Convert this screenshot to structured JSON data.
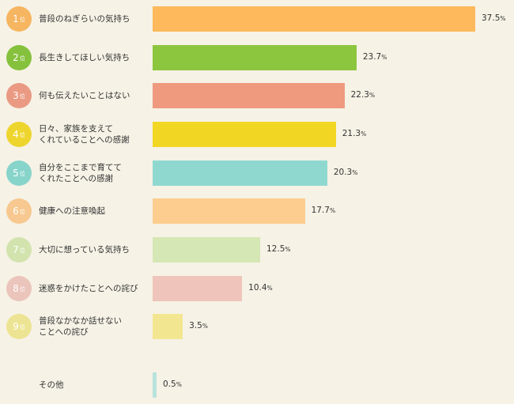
{
  "chart_data": {
    "type": "bar",
    "orientation": "horizontal",
    "xlim": [
      0,
      40
    ],
    "rank_suffix": "位",
    "value_unit": "%",
    "categories": [
      "普段のねぎらいの気持ち",
      "長生きしてほしい気持ち",
      "何も伝えたいことはない",
      "日々、家族を支えて\nくれていることへの感謝",
      "自分をここまで育てて\nくれたことへの感謝",
      "健康への注意喚起",
      "大切に想っている気持ち",
      "迷惑をかけたことへの詫び",
      "普段なかなか話せない\nことへの詫び",
      "その他"
    ],
    "ranks": [
      "1",
      "2",
      "3",
      "4",
      "5",
      "6",
      "7",
      "8",
      "9",
      ""
    ],
    "values": [
      37.5,
      23.7,
      22.3,
      21.3,
      20.3,
      17.7,
      12.5,
      10.4,
      3.5,
      0.5
    ],
    "value_labels": [
      "37.5",
      "23.7",
      "22.3",
      "21.3",
      "20.3",
      "17.7",
      "12.5",
      "10.4",
      "3.5",
      "0.5"
    ],
    "bar_colors": [
      "#fdb95b",
      "#8cc63e",
      "#ef9a7f",
      "#f2d624",
      "#8fd8cf",
      "#fccd8f",
      "#d5e7b4",
      "#efc4ba",
      "#f2e691",
      "#b8e3dc"
    ],
    "badge_colors": [
      "#f6b560",
      "#86c13d",
      "#ea9a83",
      "#eed52e",
      "#87d4cb",
      "#f7c88f",
      "#d2e3ae",
      "#ebc4bb",
      "#ede493",
      ""
    ]
  }
}
